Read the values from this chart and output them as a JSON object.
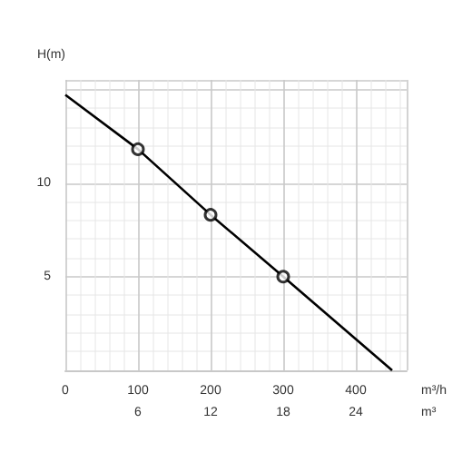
{
  "chart_data": {
    "type": "line",
    "ylabel": "H(m)",
    "xlabel": "m³/h",
    "x2label": "m³",
    "series": [
      {
        "color": "#000000",
        "marker": "none",
        "x": [
          0,
          100,
          200,
          300,
          450
        ],
        "values": [
          14.7,
          11.8,
          8.3,
          5.0,
          0
        ]
      },
      {
        "type": "scatter",
        "color": "#000000",
        "marker": "circle",
        "x": [
          100,
          200,
          300
        ],
        "values": [
          11.8,
          8.3,
          5.0
        ]
      }
    ],
    "xlim": [
      0,
      470
    ],
    "xticks": [
      0,
      100,
      200,
      300,
      400
    ],
    "x2lim": [
      0,
      28.2
    ],
    "x2ticks": [
      6,
      12,
      18,
      24
    ],
    "ylim": [
      0,
      15.5
    ],
    "yticks": [
      5,
      10
    ],
    "grid": true
  }
}
